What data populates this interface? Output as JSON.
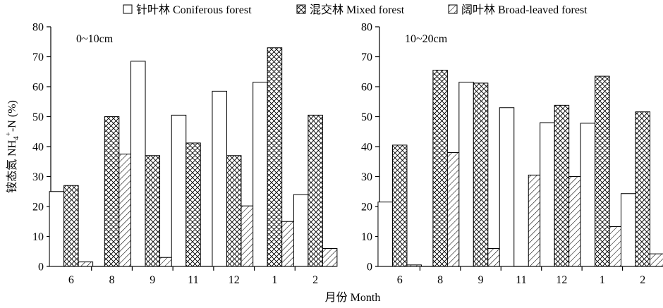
{
  "legend": [
    {
      "name": "针叶林 Coniferous forest",
      "pattern": "white"
    },
    {
      "name": "混交林 Mixed forest",
      "pattern": "crosshatch"
    },
    {
      "name": "阔叶林 Broad-leaved forest",
      "pattern": "diagonal"
    }
  ],
  "ylabel": "铵态氮 NH4+-N (%)",
  "ylabel_parts": {
    "pre": "铵态氮 NH",
    "sub": "4",
    "sup": "+",
    "post": "-N (%)"
  },
  "xlabel": "月份 Month",
  "colors": {
    "stroke": "#000000",
    "fill": "#ffffff"
  },
  "chart_data": [
    {
      "type": "bar",
      "title": "0~10cm",
      "categories": [
        "6",
        "8",
        "9",
        "11",
        "12",
        "1",
        "2"
      ],
      "ylim": [
        0,
        80
      ],
      "yticks": [
        0,
        10,
        20,
        30,
        40,
        50,
        60,
        70,
        80
      ],
      "series": [
        {
          "name": "针叶林 Coniferous forest",
          "values": [
            25,
            null,
            68.5,
            50.5,
            58.5,
            61.5,
            24
          ]
        },
        {
          "name": "混交林 Mixed forest",
          "values": [
            27,
            50,
            37,
            41.2,
            37,
            73,
            50.5
          ]
        },
        {
          "name": "阔叶林 Broad-leaved forest",
          "values": [
            1.5,
            37.5,
            3,
            null,
            20.2,
            15,
            6
          ]
        }
      ]
    },
    {
      "type": "bar",
      "title": "10~20cm",
      "categories": [
        "6",
        "8",
        "9",
        "11",
        "12",
        "1",
        "2"
      ],
      "ylim": [
        0,
        80
      ],
      "yticks": [
        0,
        10,
        20,
        30,
        40,
        50,
        60,
        70,
        80
      ],
      "series": [
        {
          "name": "针叶林 Coniferous forest",
          "values": [
            21.5,
            null,
            61.5,
            53,
            48,
            47.8,
            24.3
          ]
        },
        {
          "name": "混交林 Mixed forest",
          "values": [
            40.5,
            65.5,
            61.2,
            null,
            53.8,
            63.5,
            51.6
          ]
        },
        {
          "name": "阔叶林 Broad-leaved forest",
          "values": [
            0.5,
            38,
            6,
            30.5,
            30,
            13.3,
            4.2
          ]
        }
      ]
    }
  ]
}
